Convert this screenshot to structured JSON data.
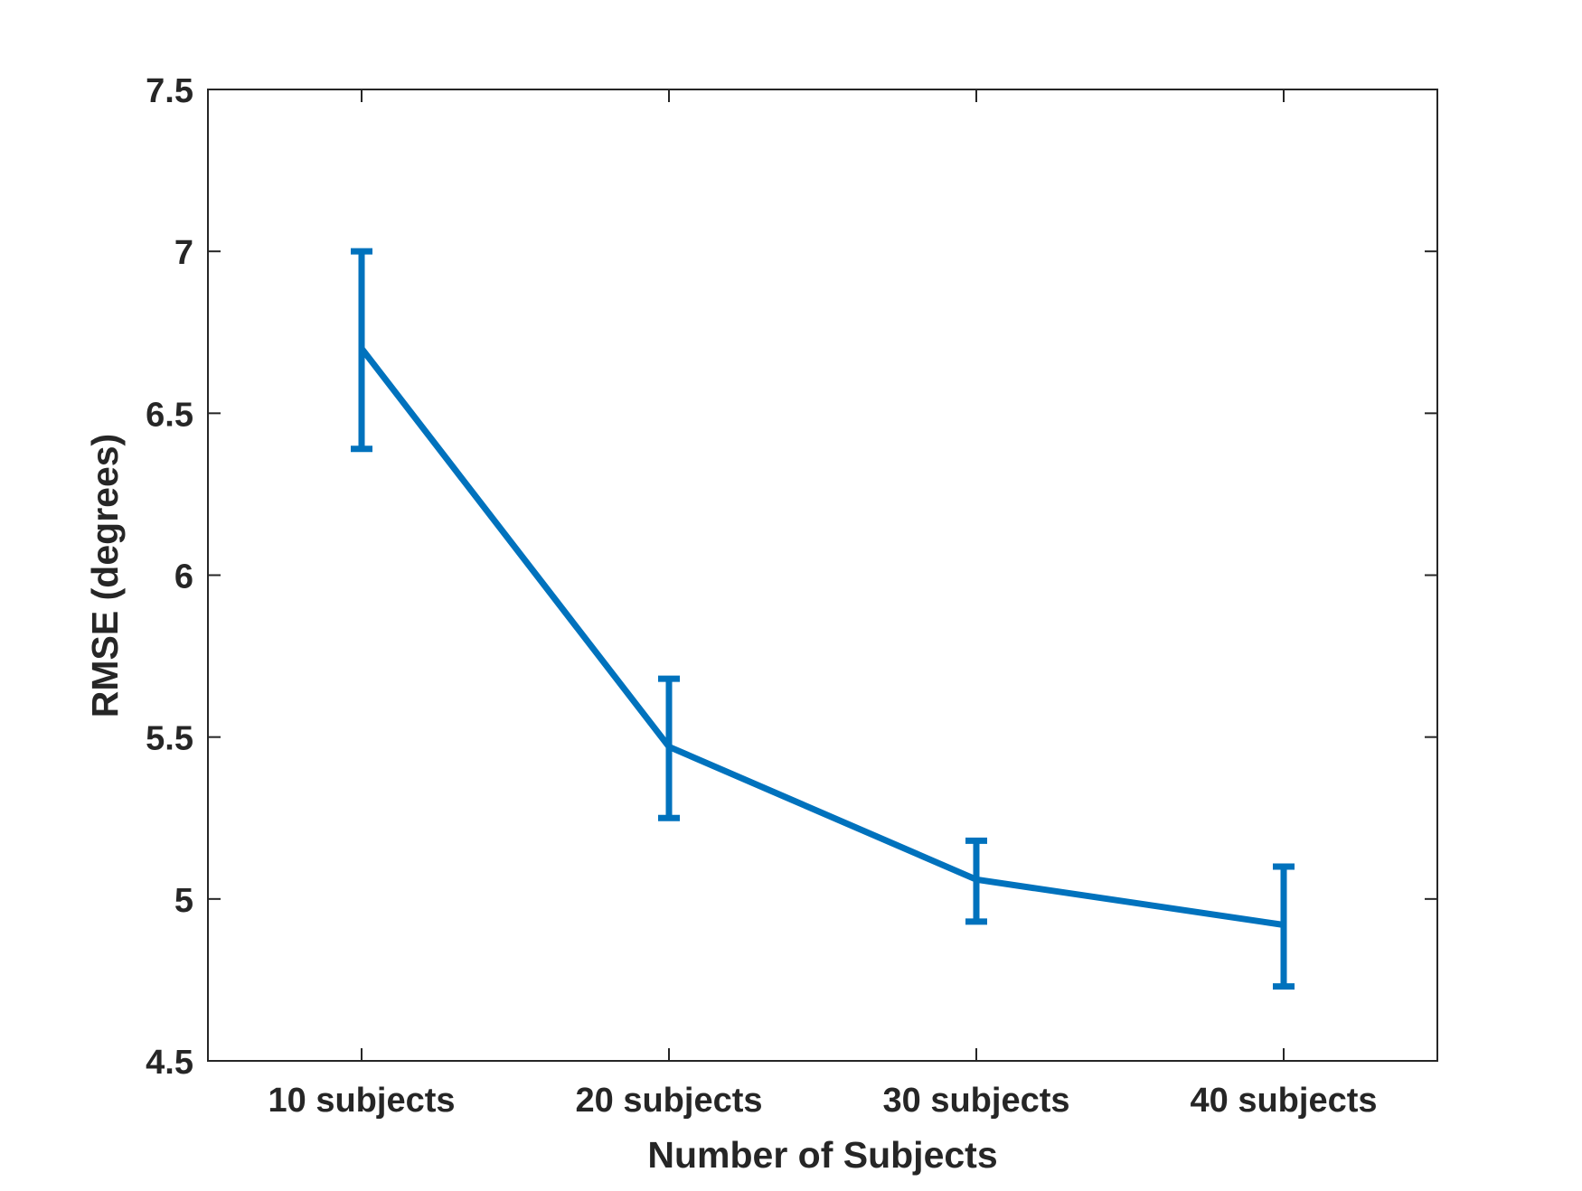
{
  "chart_data": {
    "type": "line",
    "title": "",
    "xlabel": "Number of Subjects",
    "ylabel": "RMSE (degrees)",
    "categories": [
      "10 subjects",
      "20 subjects",
      "30 subjects",
      "40 subjects"
    ],
    "series": [
      {
        "values": [
          6.7,
          5.47,
          5.06,
          4.92
        ],
        "error_low": [
          6.39,
          5.25,
          4.93,
          4.73
        ],
        "error_high": [
          7.0,
          5.68,
          5.18,
          5.1
        ],
        "color": "#0072BD"
      }
    ],
    "ylim": [
      4.5,
      7.5
    ],
    "yticks": [
      4.5,
      5,
      5.5,
      6,
      6.5,
      7,
      7.5
    ],
    "ytick_labels": [
      "4.5",
      "5",
      "5.5",
      "6",
      "6.5",
      "7",
      "7.5"
    ],
    "xlim": [
      0.5,
      4.5
    ],
    "grid": false,
    "legend": "none",
    "axis_color": "#262626"
  }
}
